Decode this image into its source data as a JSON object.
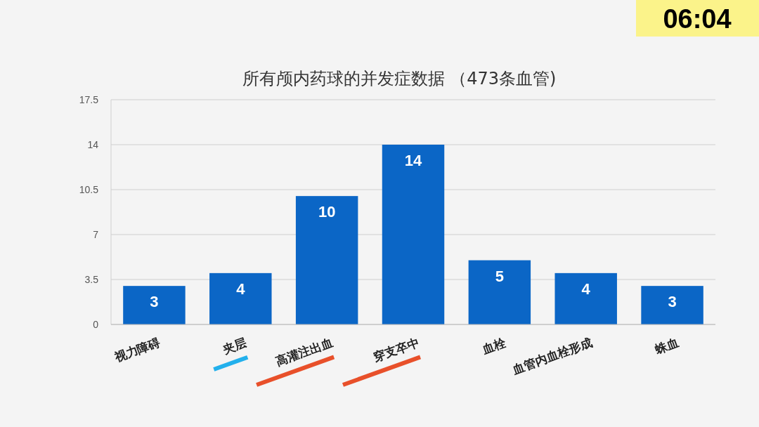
{
  "chart_data": {
    "type": "bar",
    "title": "所有颅内药球的并发症数据 （473条血管)",
    "categories": [
      "视力障碍",
      "夹层",
      "高灌注出血",
      "穿支卒中",
      "血栓",
      "血管内血栓形成",
      "蛛血"
    ],
    "values": [
      3,
      4,
      10,
      14,
      5,
      4,
      3
    ],
    "color": "#0b66c6",
    "ylim": [
      0,
      17.5
    ],
    "yticks": [
      0,
      3.5,
      7,
      10.5,
      14,
      17.5
    ],
    "grid": "y",
    "data_labels": true,
    "annotations": [
      "06:04"
    ]
  }
}
